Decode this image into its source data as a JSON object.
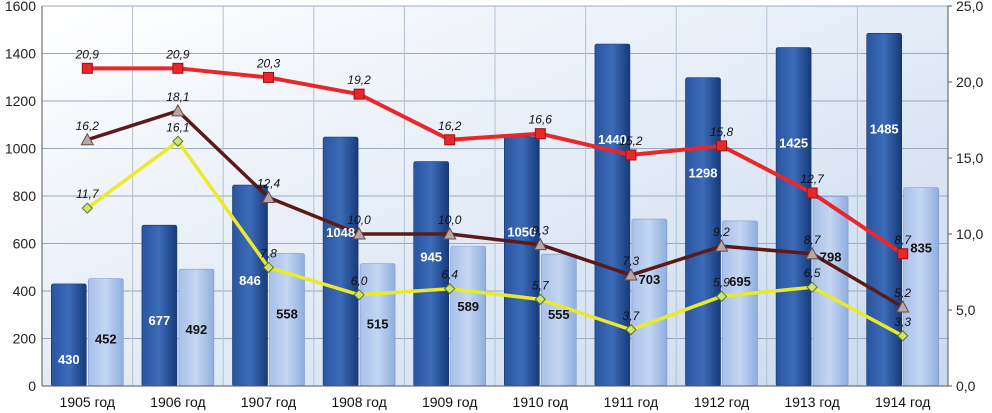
{
  "chart_data": {
    "type": "bar",
    "categories": [
      "1905 год",
      "1906 год",
      "1907 год",
      "1908 год",
      "1909 год",
      "1910 год",
      "1911 год",
      "1912 год",
      "1913 год",
      "1914 год"
    ],
    "bar_series": [
      {
        "values": [
          430,
          677,
          846,
          1048,
          945,
          1050,
          1440,
          1298,
          1425,
          1485
        ],
        "color_top": "#4a78bd",
        "color_bottom": "#1a3d7c",
        "label_color": "#ffffff"
      },
      {
        "values": [
          452,
          492,
          558,
          515,
          589,
          555,
          703,
          695,
          798,
          835
        ],
        "color_top": "#b9cdee",
        "color_bottom": "#7fa2d9",
        "label_color": "#111111"
      }
    ],
    "line_series": [
      {
        "values": [
          20.9,
          20.9,
          20.3,
          19.2,
          16.2,
          16.6,
          15.2,
          15.8,
          12.7,
          8.7
        ],
        "labels": [
          "20,9",
          "20,9",
          "20,3",
          "19,2",
          "16,2",
          "16,6",
          "15,2",
          "15,8",
          "12,7",
          "8,7"
        ],
        "color": "#e8262b",
        "marker": "square"
      },
      {
        "values": [
          16.2,
          18.1,
          12.4,
          10.0,
          10.0,
          9.3,
          7.3,
          9.2,
          8.7,
          5.2
        ],
        "labels": [
          "16,2",
          "18,1",
          "12,4",
          "10,0",
          "10,0",
          "9,3",
          "7,3",
          "9,2",
          "8,7",
          "5,2"
        ],
        "color": "#5b1a18",
        "marker": "triangle"
      },
      {
        "values": [
          11.7,
          16.1,
          7.8,
          6.0,
          6.4,
          5.7,
          3.7,
          5.9,
          6.5,
          3.3
        ],
        "labels": [
          "11,7",
          "16,1",
          "7,8",
          "6,0",
          "6,4",
          "5,7",
          "3,7",
          "5,9",
          "6,5",
          "3,3"
        ],
        "color": "#eaea2a",
        "marker": "diamond"
      }
    ],
    "y_left": {
      "ylim": [
        0,
        1600
      ],
      "ticks": [
        "0",
        "200",
        "400",
        "600",
        "800",
        "1000",
        "1200",
        "1400",
        "1600"
      ]
    },
    "y_right": {
      "ylim": [
        0,
        25
      ],
      "ticks": [
        "0,0",
        "5,0",
        "10,0",
        "15,0",
        "20,0",
        "25,0"
      ]
    },
    "grid": true,
    "plot_background": "#d9e5f3"
  }
}
